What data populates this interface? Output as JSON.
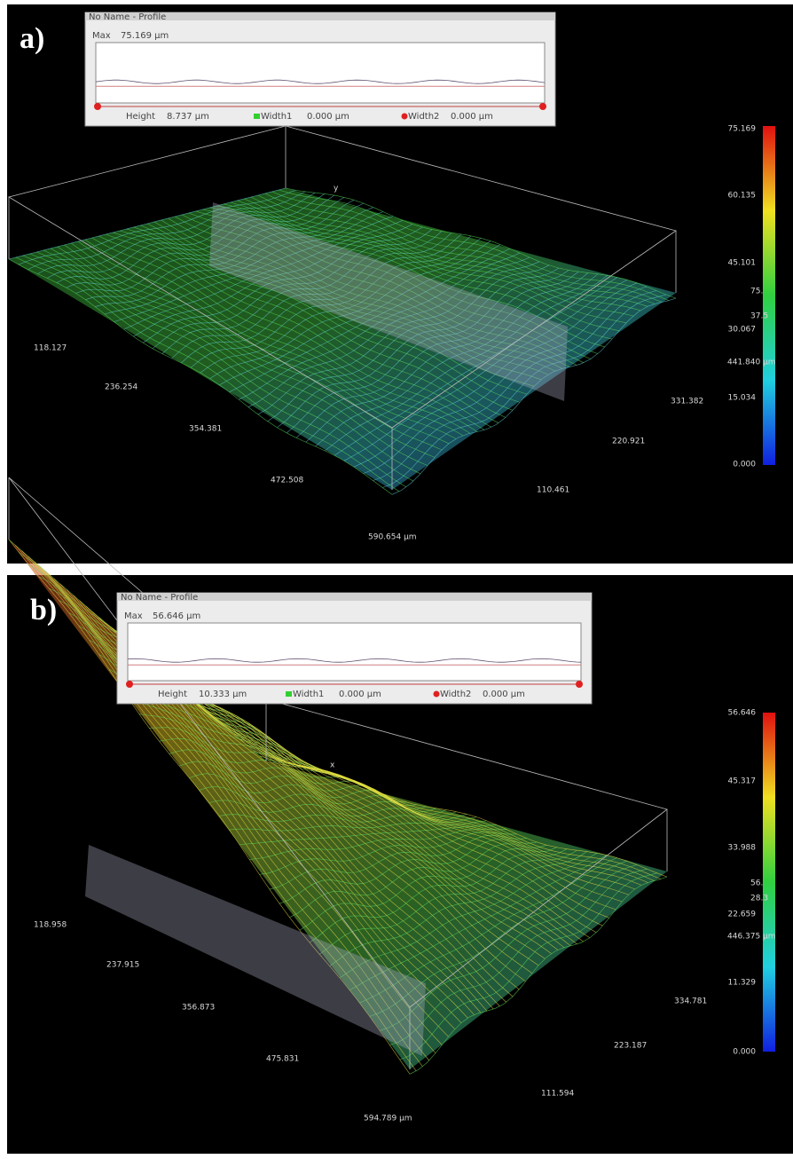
{
  "panels": [
    {
      "label": "a)",
      "profile": {
        "title": "No Name - Profile",
        "max_label": "Max",
        "max_value": "75.169 µm",
        "height_label": "Height",
        "height_value": "8.737 µm",
        "width1_label": "Width1",
        "width1_value": "0.000 µm",
        "width2_label": "Width2",
        "width2_value": "0.000 µm"
      },
      "axis_letter": "y",
      "x_labels": [
        "118.127",
        "236.254",
        "354.381",
        "472.508",
        "590.654 µm"
      ],
      "y_labels": [
        "331.382",
        "220.921",
        "110.461"
      ],
      "colorbar_labels": [
        "75.169",
        "60.135",
        "45.101",
        "30.067",
        "15.034",
        "0.000"
      ],
      "overlay_labels": [
        "75.",
        "37.5",
        "441.840 µm"
      ]
    },
    {
      "label": "b)",
      "profile": {
        "title": "No Name - Profile",
        "max_label": "Max",
        "max_value": "56.646 µm",
        "height_label": "Height",
        "height_value": "10.333 µm",
        "width1_label": "Width1",
        "width1_value": "0.000 µm",
        "width2_label": "Width2",
        "width2_value": "0.000 µm"
      },
      "axis_letter": "x",
      "x_labels": [
        "118.958",
        "237.915",
        "356.873",
        "475.831",
        "594.789 µm"
      ],
      "y_labels": [
        "334.781",
        "223.187",
        "111.594"
      ],
      "colorbar_labels": [
        "56.646",
        "45.317",
        "33.988",
        "22.659",
        "11.329",
        "0.000"
      ],
      "overlay_labels": [
        "56.",
        "28.3",
        "446.375 µm"
      ]
    }
  ]
}
